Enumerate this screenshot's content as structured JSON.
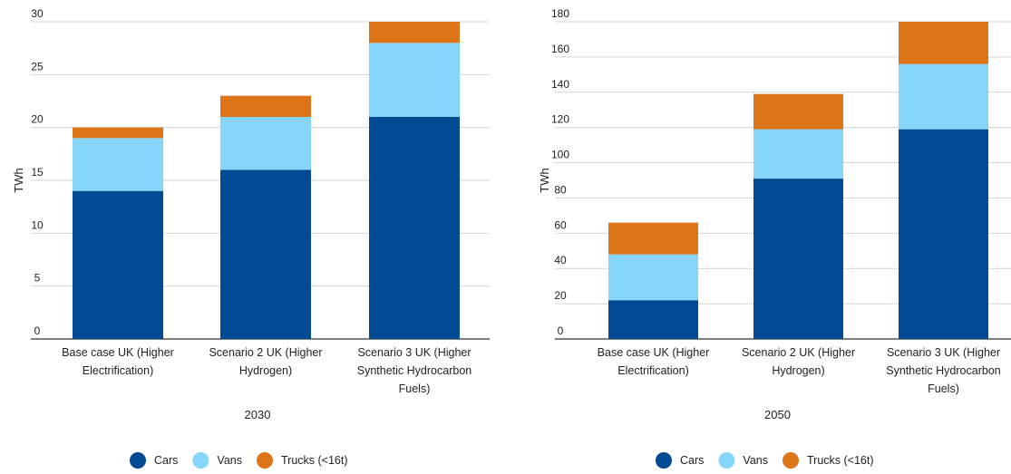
{
  "colors": {
    "cars": "#004b93",
    "vans": "#85d6fa",
    "trucks": "#dd7416",
    "grid": "#d4d4d4",
    "axis": "#333333"
  },
  "chart_data": [
    {
      "type": "bar",
      "stacked": true,
      "title": "",
      "xlabel": "2030",
      "ylabel": "TWh",
      "ylim": [
        0,
        30
      ],
      "yticks": [
        0,
        5,
        10,
        15,
        20,
        25,
        30
      ],
      "grid": true,
      "legend_position": "bottom",
      "categories": [
        [
          "Base case UK (Higher",
          "Electrification)"
        ],
        [
          "Scenario 2 UK (Higher",
          "Hydrogen)"
        ],
        [
          "Scenario 3 UK (Higher",
          "Synthetic Hydrocarbon",
          "Fuels)"
        ]
      ],
      "series": [
        {
          "name": "Cars",
          "values": [
            14,
            16,
            21
          ]
        },
        {
          "name": "Vans",
          "values": [
            5,
            5,
            7
          ]
        },
        {
          "name": "Trucks (<16t)",
          "values": [
            1,
            2,
            2
          ]
        }
      ]
    },
    {
      "type": "bar",
      "stacked": true,
      "title": "",
      "xlabel": "2050",
      "ylabel": "TWh",
      "ylim": [
        0,
        180
      ],
      "yticks": [
        0,
        20,
        40,
        60,
        80,
        100,
        120,
        140,
        160,
        180
      ],
      "grid": true,
      "legend_position": "bottom",
      "categories": [
        [
          "Base case UK (Higher",
          "Electrification)"
        ],
        [
          "Scenario 2 UK (Higher",
          "Hydrogen)"
        ],
        [
          "Scenario 3 UK (Higher",
          "Synthetic Hydrocarbon",
          "Fuels)"
        ]
      ],
      "series": [
        {
          "name": "Cars",
          "values": [
            22,
            91,
            119
          ]
        },
        {
          "name": "Vans",
          "values": [
            26,
            28,
            37
          ]
        },
        {
          "name": "Trucks (<16t)",
          "values": [
            18,
            20,
            24
          ]
        }
      ]
    }
  ]
}
